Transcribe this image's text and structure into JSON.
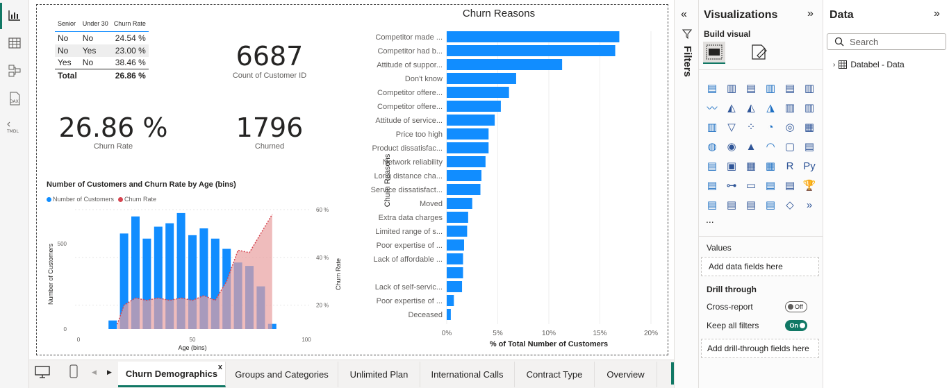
{
  "left_nav": {
    "icons": [
      "report-view-icon",
      "table-view-icon",
      "model-view-icon",
      "dax-query-icon",
      "tmdl-view-icon"
    ]
  },
  "senior_table": {
    "headers": [
      "Senior",
      "Under 30",
      "Churn Rate"
    ],
    "rows": [
      {
        "senior": "No",
        "under30": "No",
        "rate": "24.54 %"
      },
      {
        "senior": "No",
        "under30": "Yes",
        "rate": "23.00 %"
      },
      {
        "senior": "Yes",
        "under30": "No",
        "rate": "38.46 %"
      }
    ],
    "total_label": "Total",
    "total_rate": "26.86 %"
  },
  "kpis": {
    "count_value": "6687",
    "count_label": "Count of Customer ID",
    "churn_rate_value": "26.86 %",
    "churn_rate_label": "Churn Rate",
    "churned_value": "1796",
    "churned_label": "Churned"
  },
  "age_chart": {
    "title": "Number of Customers and Churn Rate by Age (bins)",
    "legend": [
      "Number of Customers",
      "Churn Rate"
    ],
    "colors": {
      "bars": "#118dff",
      "area": "#e8a0a0",
      "line": "#d64550"
    },
    "y_label": "Number of Customers",
    "y2_label": "Churn Rate",
    "x_label": "Age (bins)",
    "y_ticks": [
      "0",
      "500"
    ],
    "y2_ticks": [
      "20 %",
      "40 %",
      "60 %"
    ],
    "x_ticks": [
      "0",
      "50",
      "100"
    ]
  },
  "reasons_chart": {
    "title": "Churn Reasons",
    "y_label": "Churn Reasons",
    "x_label": "% of Total Number of Customers",
    "x_ticks": [
      "0%",
      "5%",
      "10%",
      "15%",
      "20%"
    ],
    "color": "#118dff"
  },
  "chart_data": [
    {
      "type": "bar",
      "title": "Churn Reasons",
      "xlabel": "% of Total Number of Customers",
      "ylabel": "Churn Reasons",
      "xlim": [
        0,
        20
      ],
      "categories": [
        "Competitor made ...",
        "Competitor had b...",
        "Attitude of suppor...",
        "Don't know",
        "Competitor offere...",
        "Competitor offere...",
        "Attitude of service...",
        "Price too high",
        "Product dissatisfac...",
        "Network reliability",
        "Long distance cha...",
        "Service dissatisfact...",
        "Moved",
        "Extra data charges",
        "Limited range of s...",
        "Poor expertise of ...",
        "Lack of affordable ...",
        "",
        "Lack of self-servic...",
        "Poor expertise of ...",
        "Deceased"
      ],
      "values": [
        16.9,
        16.5,
        11.3,
        6.8,
        6.1,
        5.3,
        4.7,
        4.1,
        4.1,
        3.8,
        3.4,
        3.3,
        2.5,
        2.1,
        2.0,
        1.7,
        1.6,
        1.6,
        1.5,
        0.7,
        0.4
      ]
    },
    {
      "type": "bar",
      "title": "Number of Customers and Churn Rate by Age (bins)",
      "xlabel": "Age (bins)",
      "ylabel": "Number of Customers",
      "xlim": [
        0,
        100
      ],
      "ylim": [
        0,
        700
      ],
      "y2lim": [
        10,
        60
      ],
      "series": [
        {
          "name": "Number of Customers",
          "x": [
            15,
            20,
            25,
            30,
            35,
            40,
            45,
            50,
            55,
            60,
            65,
            70,
            75,
            80,
            85
          ],
          "values": [
            50,
            560,
            660,
            530,
            600,
            620,
            680,
            550,
            590,
            530,
            470,
            390,
            370,
            250,
            30
          ]
        },
        {
          "name": "Churn Rate",
          "x": [
            17,
            20,
            25,
            30,
            35,
            40,
            45,
            50,
            55,
            60,
            65,
            70,
            75,
            80,
            85
          ],
          "values": [
            12,
            20,
            23,
            22,
            23,
            22,
            23,
            22,
            24,
            22,
            30,
            43,
            42,
            50,
            58
          ]
        }
      ]
    }
  ],
  "tabs": [
    "Churn Demographics",
    "Groups and Categories",
    "Unlimited Plan",
    "International Calls",
    "Contract Type",
    "Overview"
  ],
  "active_tab": "Churn Demographics",
  "tab_close": "x",
  "add_tab": "+",
  "filters_label": "Filters",
  "viz_pane": {
    "title": "Visualizations",
    "build_visual": "Build visual",
    "more": "...",
    "values_label": "Values",
    "values_well": "Add data fields here",
    "drill_through": "Drill through",
    "cross_report": "Cross-report",
    "cross_report_state": "Off",
    "keep_filters": "Keep all filters",
    "keep_filters_state": "On",
    "drill_well": "Add drill-through fields here"
  },
  "data_pane": {
    "title": "Data",
    "search_placeholder": "Search",
    "table_name": "Databel - Data"
  }
}
